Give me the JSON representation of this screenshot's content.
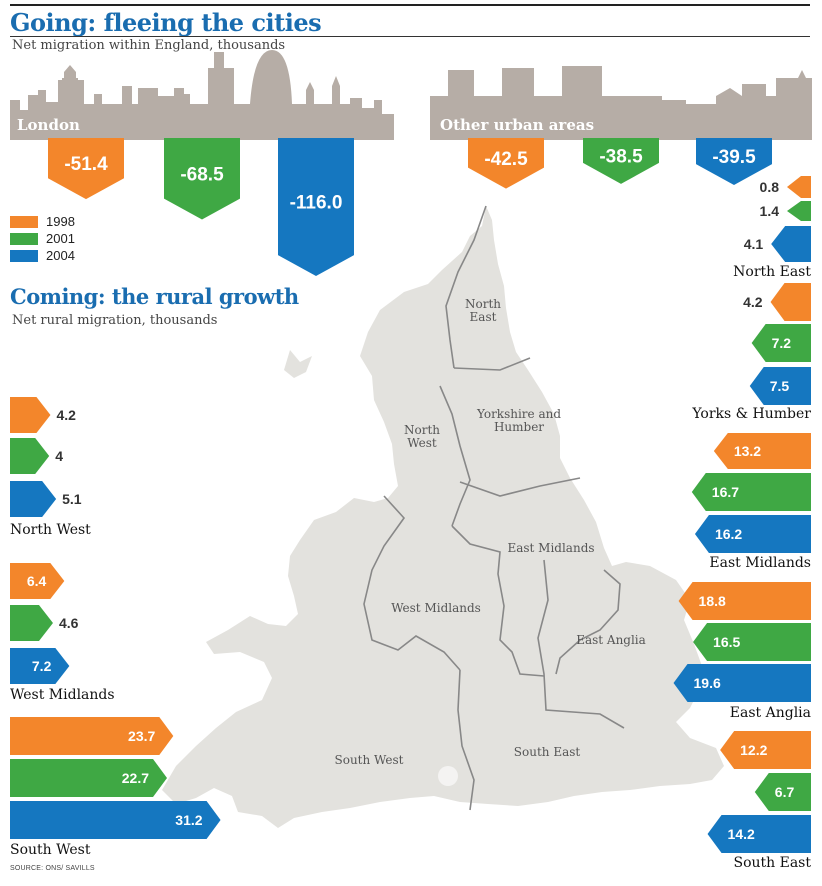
{
  "going": {
    "title": "Going: fleeing the cities",
    "subtitle": "Net migration within  England, thousands",
    "panels": [
      {
        "label": "London",
        "values": [
          "-51.4",
          "-68.5",
          "-116.0"
        ]
      },
      {
        "label": "Other urban areas",
        "values": [
          "-42.5",
          "-38.5",
          "-39.5"
        ]
      }
    ]
  },
  "legend": [
    {
      "label": "1998",
      "color": "#f3862b"
    },
    {
      "label": "2001",
      "color": "#3fa844"
    },
    {
      "label": "2004",
      "color": "#1577c0"
    }
  ],
  "coming": {
    "title": "Coming: the rural growth",
    "subtitle": "Net rural migration, thousands"
  },
  "map_labels": {
    "north_east": "North\nEast",
    "north_west": "North\nWest",
    "yorkshire": "Yorkshire and\nHumber",
    "east_midlands": "East Midlands",
    "west_midlands": "West Midlands",
    "east_anglia": "East Anglia",
    "south_west": "South West",
    "south_east": "South East"
  },
  "source": "SOURCE: ONS/ SAVILLS",
  "chart_data": [
    {
      "type": "bar",
      "title": "Going: fleeing the cities",
      "subtitle": "Net migration within  England, thousands",
      "categories": [
        "London",
        "Other urban areas"
      ],
      "series": [
        {
          "name": "1998",
          "values": [
            -51.4,
            -42.5
          ]
        },
        {
          "name": "2001",
          "values": [
            -68.5,
            -38.5
          ]
        },
        {
          "name": "2004",
          "values": [
            -116.0,
            -39.5
          ]
        }
      ]
    },
    {
      "type": "bar",
      "title": "Coming: the rural growth",
      "subtitle": "Net rural migration, thousands",
      "categories": [
        "North East",
        "Yorks & Humber",
        "East Midlands",
        "East Anglia",
        "South East",
        "North West",
        "West Midlands",
        "South West"
      ],
      "series": [
        {
          "name": "1998",
          "values": [
            0.8,
            4.2,
            13.2,
            18.8,
            12.2,
            4.2,
            6.4,
            23.7
          ]
        },
        {
          "name": "2001",
          "values": [
            1.4,
            7.2,
            16.7,
            16.5,
            6.7,
            4,
            4.6,
            22.7
          ]
        },
        {
          "name": "2004",
          "values": [
            4.1,
            7.5,
            16.2,
            19.6,
            14.2,
            5.1,
            7.2,
            31.2
          ]
        }
      ],
      "labels": {
        "North East": [
          "0.8",
          "1.4",
          "4.1"
        ],
        "Yorks & Humber": [
          "4.2",
          "7.2",
          "7.5"
        ],
        "East Midlands": [
          "13.2",
          "16.7",
          "16.2"
        ],
        "East Anglia": [
          "18.8",
          "16.5",
          "19.6"
        ],
        "South East": [
          "12.2",
          "6.7",
          "14.2"
        ],
        "North West": [
          "4.2",
          "4",
          "5.1"
        ],
        "West Midlands": [
          "6.4",
          "4.6",
          "7.2"
        ],
        "South West": [
          "23.7",
          "22.7",
          "31.2"
        ]
      }
    }
  ]
}
